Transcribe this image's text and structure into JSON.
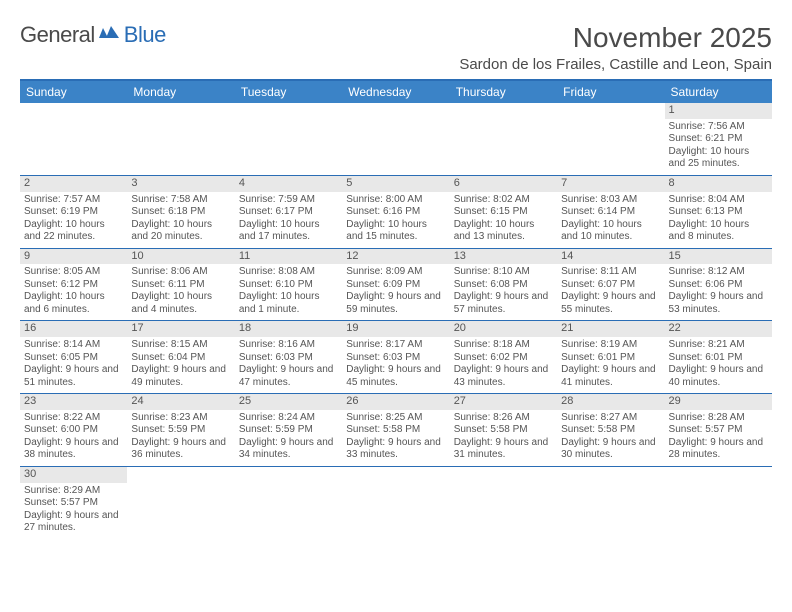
{
  "logo": {
    "general": "General",
    "blue": "Blue"
  },
  "title": "November 2025",
  "location": "Sardon de los Frailes, Castille and Leon, Spain",
  "colors": {
    "header_bg": "#3b83c7",
    "header_border": "#2a6db5",
    "daynum_bg": "#e8e8e8",
    "text": "#555555"
  },
  "day_headers": [
    "Sunday",
    "Monday",
    "Tuesday",
    "Wednesday",
    "Thursday",
    "Friday",
    "Saturday"
  ],
  "weeks": [
    [
      null,
      null,
      null,
      null,
      null,
      null,
      {
        "n": "1",
        "sunrise": "7:56 AM",
        "sunset": "6:21 PM",
        "daylight": "10 hours and 25 minutes."
      }
    ],
    [
      {
        "n": "2",
        "sunrise": "7:57 AM",
        "sunset": "6:19 PM",
        "daylight": "10 hours and 22 minutes."
      },
      {
        "n": "3",
        "sunrise": "7:58 AM",
        "sunset": "6:18 PM",
        "daylight": "10 hours and 20 minutes."
      },
      {
        "n": "4",
        "sunrise": "7:59 AM",
        "sunset": "6:17 PM",
        "daylight": "10 hours and 17 minutes."
      },
      {
        "n": "5",
        "sunrise": "8:00 AM",
        "sunset": "6:16 PM",
        "daylight": "10 hours and 15 minutes."
      },
      {
        "n": "6",
        "sunrise": "8:02 AM",
        "sunset": "6:15 PM",
        "daylight": "10 hours and 13 minutes."
      },
      {
        "n": "7",
        "sunrise": "8:03 AM",
        "sunset": "6:14 PM",
        "daylight": "10 hours and 10 minutes."
      },
      {
        "n": "8",
        "sunrise": "8:04 AM",
        "sunset": "6:13 PM",
        "daylight": "10 hours and 8 minutes."
      }
    ],
    [
      {
        "n": "9",
        "sunrise": "8:05 AM",
        "sunset": "6:12 PM",
        "daylight": "10 hours and 6 minutes."
      },
      {
        "n": "10",
        "sunrise": "8:06 AM",
        "sunset": "6:11 PM",
        "daylight": "10 hours and 4 minutes."
      },
      {
        "n": "11",
        "sunrise": "8:08 AM",
        "sunset": "6:10 PM",
        "daylight": "10 hours and 1 minute."
      },
      {
        "n": "12",
        "sunrise": "8:09 AM",
        "sunset": "6:09 PM",
        "daylight": "9 hours and 59 minutes."
      },
      {
        "n": "13",
        "sunrise": "8:10 AM",
        "sunset": "6:08 PM",
        "daylight": "9 hours and 57 minutes."
      },
      {
        "n": "14",
        "sunrise": "8:11 AM",
        "sunset": "6:07 PM",
        "daylight": "9 hours and 55 minutes."
      },
      {
        "n": "15",
        "sunrise": "8:12 AM",
        "sunset": "6:06 PM",
        "daylight": "9 hours and 53 minutes."
      }
    ],
    [
      {
        "n": "16",
        "sunrise": "8:14 AM",
        "sunset": "6:05 PM",
        "daylight": "9 hours and 51 minutes."
      },
      {
        "n": "17",
        "sunrise": "8:15 AM",
        "sunset": "6:04 PM",
        "daylight": "9 hours and 49 minutes."
      },
      {
        "n": "18",
        "sunrise": "8:16 AM",
        "sunset": "6:03 PM",
        "daylight": "9 hours and 47 minutes."
      },
      {
        "n": "19",
        "sunrise": "8:17 AM",
        "sunset": "6:03 PM",
        "daylight": "9 hours and 45 minutes."
      },
      {
        "n": "20",
        "sunrise": "8:18 AM",
        "sunset": "6:02 PM",
        "daylight": "9 hours and 43 minutes."
      },
      {
        "n": "21",
        "sunrise": "8:19 AM",
        "sunset": "6:01 PM",
        "daylight": "9 hours and 41 minutes."
      },
      {
        "n": "22",
        "sunrise": "8:21 AM",
        "sunset": "6:01 PM",
        "daylight": "9 hours and 40 minutes."
      }
    ],
    [
      {
        "n": "23",
        "sunrise": "8:22 AM",
        "sunset": "6:00 PM",
        "daylight": "9 hours and 38 minutes."
      },
      {
        "n": "24",
        "sunrise": "8:23 AM",
        "sunset": "5:59 PM",
        "daylight": "9 hours and 36 minutes."
      },
      {
        "n": "25",
        "sunrise": "8:24 AM",
        "sunset": "5:59 PM",
        "daylight": "9 hours and 34 minutes."
      },
      {
        "n": "26",
        "sunrise": "8:25 AM",
        "sunset": "5:58 PM",
        "daylight": "9 hours and 33 minutes."
      },
      {
        "n": "27",
        "sunrise": "8:26 AM",
        "sunset": "5:58 PM",
        "daylight": "9 hours and 31 minutes."
      },
      {
        "n": "28",
        "sunrise": "8:27 AM",
        "sunset": "5:58 PM",
        "daylight": "9 hours and 30 minutes."
      },
      {
        "n": "29",
        "sunrise": "8:28 AM",
        "sunset": "5:57 PM",
        "daylight": "9 hours and 28 minutes."
      }
    ],
    [
      {
        "n": "30",
        "sunrise": "8:29 AM",
        "sunset": "5:57 PM",
        "daylight": "9 hours and 27 minutes."
      },
      null,
      null,
      null,
      null,
      null,
      null
    ]
  ],
  "labels": {
    "sunrise": "Sunrise: ",
    "sunset": "Sunset: ",
    "daylight": "Daylight: "
  }
}
